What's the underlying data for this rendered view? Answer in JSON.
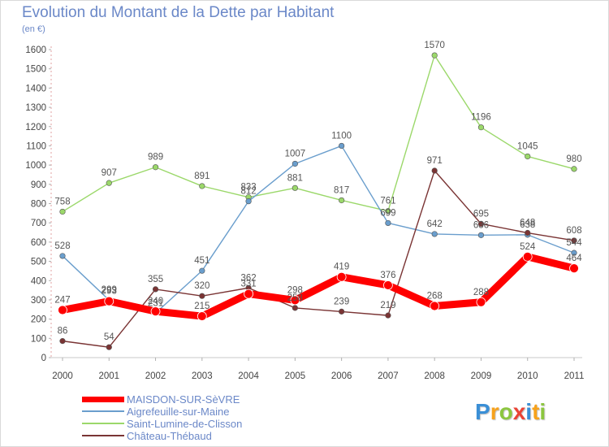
{
  "header": {
    "title": "Evolution du Montant de la Dette par Habitant",
    "unit": "(en €)"
  },
  "legend": [
    {
      "label": "MAISDON-SUR-SèVRE",
      "color": "#ff0000",
      "width": 7
    },
    {
      "label": "Aigrefeuille-sur-Maine",
      "color": "#6a9ecd",
      "width": 1.4
    },
    {
      "label": "Saint-Lumine-de-Clisson",
      "color": "#9bd86a",
      "width": 1.4
    },
    {
      "label": "Château-Thébaud",
      "color": "#7a3434",
      "width": 1.4
    }
  ],
  "logo": {
    "letters": [
      "P",
      "r",
      "o",
      "x",
      "i",
      "t",
      "i"
    ],
    "colors": [
      "#3a8fd6",
      "#f7a21b",
      "#8cc63f",
      "#ea4335",
      "#3a8fd6",
      "#f7a21b",
      "#8cc63f"
    ]
  },
  "chart_data": {
    "type": "line",
    "title": "Evolution du Montant de la Dette par Habitant",
    "ylabel": "(en €)",
    "x": [
      "2000",
      "2001",
      "2002",
      "2003",
      "2004",
      "2005",
      "2006",
      "2007",
      "2008",
      "2009",
      "2010",
      "2011"
    ],
    "ylim": [
      0,
      1600
    ],
    "yticks": [
      0,
      100,
      200,
      300,
      400,
      500,
      600,
      700,
      800,
      900,
      1000,
      1100,
      1200,
      1300,
      1400,
      1500,
      1600
    ],
    "grid": false,
    "legend_position": "bottom-left",
    "series": [
      {
        "name": "MAISDON-SUR-SèVRE",
        "color": "#ff0000",
        "values": [
          247,
          293,
          240,
          215,
          331,
          298,
          419,
          376,
          268,
          288,
          524,
          464
        ]
      },
      {
        "name": "Aigrefeuille-sur-Maine",
        "color": "#6a9ecd",
        "values": [
          528,
          299,
          231,
          451,
          812,
          1007,
          1100,
          699,
          642,
          636,
          638,
          544
        ]
      },
      {
        "name": "Saint-Lumine-de-Clisson",
        "color": "#9bd86a",
        "values": [
          758,
          907,
          989,
          891,
          833,
          881,
          817,
          761,
          1570,
          1196,
          1045,
          980
        ]
      },
      {
        "name": "Château-Thébaud",
        "color": "#7a3434",
        "values": [
          86,
          54,
          355,
          320,
          362,
          258,
          239,
          219,
          971,
          695,
          648,
          608
        ]
      }
    ]
  }
}
